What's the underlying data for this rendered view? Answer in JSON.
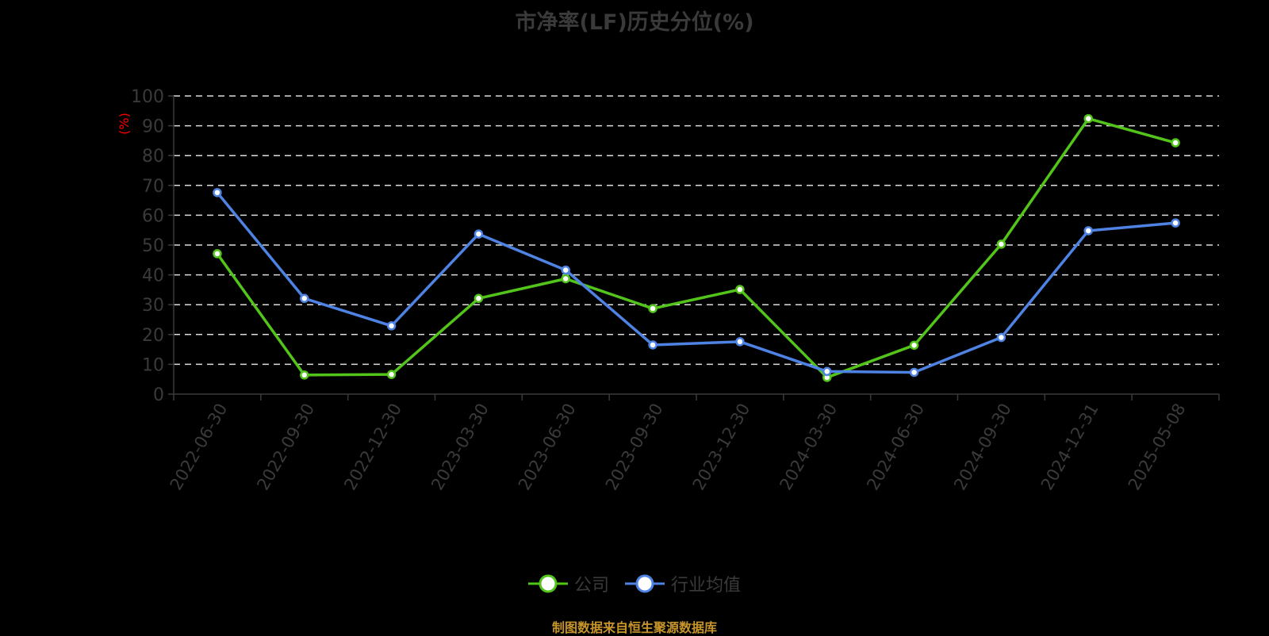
{
  "chart_data": {
    "type": "line",
    "title": "市净率(LF)历史分位(%)",
    "xlabel": "",
    "ylabel": "(%)",
    "ylim": [
      0,
      100
    ],
    "yticks": [
      0,
      10,
      20,
      30,
      40,
      50,
      60,
      70,
      80,
      90,
      100
    ],
    "grid": true,
    "legend_position": "bottom",
    "categories": [
      "2022-06-30",
      "2022-09-30",
      "2022-12-30",
      "2023-03-30",
      "2023-06-30",
      "2023-09-30",
      "2023-12-30",
      "2024-03-30",
      "2024-06-30",
      "2024-09-30",
      "2024-12-31",
      "2025-05-08"
    ],
    "series": [
      {
        "name": "公司",
        "color": "#52c41a",
        "values": [
          47.1,
          6.4,
          6.6,
          32.1,
          38.7,
          28.7,
          35.1,
          5.6,
          16.4,
          50.3,
          92.4,
          84.3
        ]
      },
      {
        "name": "行业均值",
        "color": "#4f83e3",
        "values": [
          67.6,
          32.1,
          22.9,
          53.7,
          41.6,
          16.5,
          17.6,
          7.6,
          7.3,
          19.0,
          54.8,
          57.4
        ]
      }
    ]
  },
  "footer": "制图数据来自恒生聚源数据库"
}
